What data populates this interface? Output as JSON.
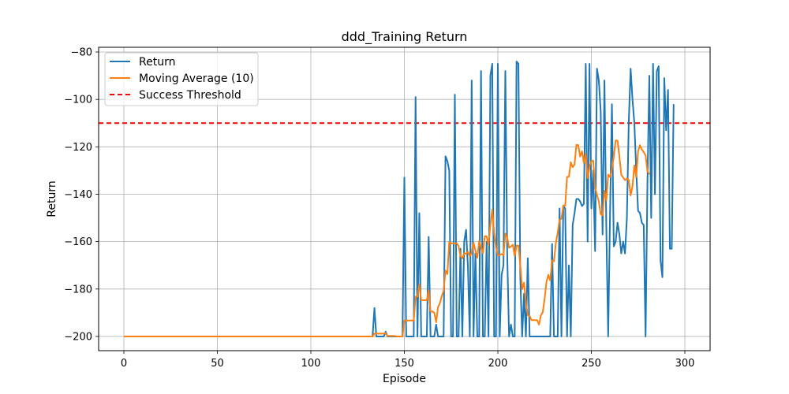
{
  "chart_data": {
    "type": "line",
    "title": "ddd_Training Return",
    "xlabel": "Episode",
    "ylabel": "Return",
    "xlim": [
      -13.5,
      313.5
    ],
    "ylim": [
      -206,
      -78
    ],
    "xticks": [
      0,
      50,
      100,
      150,
      200,
      250,
      300
    ],
    "yticks": [
      -200,
      -180,
      -160,
      -140,
      -120,
      -100,
      -80
    ],
    "grid": true,
    "legend_position": "top-left",
    "threshold": {
      "name": "Success Threshold",
      "value": -110,
      "color": "#ff0000",
      "style": "dashed"
    },
    "series": [
      {
        "name": "Return",
        "color": "#1f77b4",
        "x_start": 0,
        "values": [
          -200,
          -200,
          -200,
          -200,
          -200,
          -200,
          -200,
          -200,
          -200,
          -200,
          -200,
          -200,
          -200,
          -200,
          -200,
          -200,
          -200,
          -200,
          -200,
          -200,
          -200,
          -200,
          -200,
          -200,
          -200,
          -200,
          -200,
          -200,
          -200,
          -200,
          -200,
          -200,
          -200,
          -200,
          -200,
          -200,
          -200,
          -200,
          -200,
          -200,
          -200,
          -200,
          -200,
          -200,
          -200,
          -200,
          -200,
          -200,
          -200,
          -200,
          -200,
          -200,
          -200,
          -200,
          -200,
          -200,
          -200,
          -200,
          -200,
          -200,
          -200,
          -200,
          -200,
          -200,
          -200,
          -200,
          -200,
          -200,
          -200,
          -200,
          -200,
          -200,
          -200,
          -200,
          -200,
          -200,
          -200,
          -200,
          -200,
          -200,
          -200,
          -200,
          -200,
          -200,
          -200,
          -200,
          -200,
          -200,
          -200,
          -200,
          -200,
          -200,
          -200,
          -200,
          -200,
          -200,
          -200,
          -200,
          -200,
          -200,
          -200,
          -200,
          -200,
          -200,
          -200,
          -200,
          -200,
          -200,
          -200,
          -200,
          -200,
          -200,
          -200,
          -200,
          -200,
          -200,
          -200,
          -200,
          -200,
          -200,
          -200,
          -200,
          -200,
          -200,
          -200,
          -200,
          -200,
          -200,
          -200,
          -200,
          -200,
          -200,
          -200,
          -200,
          -188,
          -200,
          -200,
          -200,
          -200,
          -200,
          -198,
          -200,
          -200,
          -200,
          -200,
          -200,
          -200,
          -200,
          -200,
          -200,
          -133,
          -200,
          -200,
          -200,
          -200,
          -200,
          -99,
          -200,
          -148,
          -200,
          -200,
          -200,
          -200,
          -158,
          -200,
          -200,
          -200,
          -195,
          -200,
          -200,
          -200,
          -200,
          -124,
          -126,
          -130,
          -200,
          -200,
          -98,
          -200,
          -200,
          -163,
          -200,
          -160,
          -155,
          -171,
          -200,
          -92,
          -200,
          -165,
          -200,
          -200,
          -88,
          -200,
          -200,
          -160,
          -200,
          -90,
          -85,
          -200,
          -200,
          -85,
          -200,
          -174,
          -170,
          -88,
          -165,
          -200,
          -195,
          -200,
          -200,
          -84,
          -85,
          -175,
          -200,
          -182,
          -200,
          -167,
          -200,
          -200,
          -200,
          -200,
          -200,
          -200,
          -200,
          -200,
          -200,
          -200,
          -200,
          -200,
          -161,
          -200,
          -200,
          -200,
          -146,
          -200,
          -145,
          -146,
          -200,
          -170,
          -200,
          -153,
          -148,
          -142,
          -142,
          -143,
          -145,
          -144,
          -85,
          -160,
          -85,
          -146,
          -130,
          -164,
          -87,
          -92,
          -105,
          -157,
          -92,
          -154,
          -200,
          -148,
          -102,
          -162,
          -160,
          -152,
          -157,
          -165,
          -160,
          -165,
          -150,
          -110,
          -87,
          -100,
          -110,
          -130,
          -147,
          -148,
          -152,
          -153,
          -200,
          -135,
          -90,
          -150,
          -85,
          -140,
          -88,
          -86,
          -168,
          -175,
          -91,
          -113,
          -96,
          -163,
          -163,
          -102
        ]
      },
      {
        "name": "Moving Average (10)",
        "color": "#ff7f0e",
        "x_start": 0,
        "values": [
          -200,
          -200,
          -200,
          -200,
          -200,
          -200,
          -200,
          -200,
          -200,
          -200,
          -200,
          -200,
          -200,
          -200,
          -200,
          -200,
          -200,
          -200,
          -200,
          -200,
          -200,
          -200,
          -200,
          -200,
          -200,
          -200,
          -200,
          -200,
          -200,
          -200,
          -200,
          -200,
          -200,
          -200,
          -200,
          -200,
          -200,
          -200,
          -200,
          -200,
          -200,
          -200,
          -200,
          -200,
          -200,
          -200,
          -200,
          -200,
          -200,
          -200,
          -200,
          -200,
          -200,
          -200,
          -200,
          -200,
          -200,
          -200,
          -200,
          -200,
          -200,
          -200,
          -200,
          -200,
          -200,
          -200,
          -200,
          -200,
          -200,
          -200,
          -200,
          -200,
          -200,
          -200,
          -200,
          -200,
          -200,
          -200,
          -200,
          -200,
          -200,
          -200,
          -200,
          -200,
          -200,
          -200,
          -200,
          -200,
          -200,
          -200,
          -200,
          -200,
          -200,
          -200,
          -200,
          -200,
          -200,
          -200,
          -200,
          -200,
          -200,
          -200,
          -200,
          -200,
          -200,
          -200,
          -200,
          -200,
          -200,
          -200,
          -200,
          -200,
          -200,
          -200,
          -200,
          -200,
          -200,
          -200,
          -200,
          -200,
          -200,
          -200,
          -200,
          -200,
          -200,
          -200,
          -200,
          -200,
          -200,
          -200,
          -200,
          -200,
          -200,
          -200,
          -198.8,
          -198.8,
          -198.8,
          -198.8,
          -198.8,
          -198.8,
          -198.6,
          -199.8,
          -199.8,
          -199.8,
          -199.8,
          -199.8,
          -200,
          -200,
          -200,
          -200,
          -193.3,
          -193.3,
          -193.3,
          -193.3,
          -193.3,
          -193.3,
          -183.2,
          -183.2,
          -178,
          -184.7,
          -184.7,
          -184.7,
          -184.7,
          -180.5,
          -189.5,
          -189.5,
          -190,
          -194,
          -187.6,
          -186,
          -183,
          -180.8,
          -172.2,
          -173.7,
          -160.2,
          -160.7,
          -160.7,
          -160.7,
          -160.7,
          -161.9,
          -165.9,
          -167.1,
          -164.9,
          -165.1,
          -164.3,
          -166.1,
          -164.8,
          -160.4,
          -163.8,
          -166.8,
          -159.8,
          -162.5,
          -164.9,
          -157.7,
          -157.8,
          -161.3,
          -153,
          -146.5,
          -156.3,
          -162.4,
          -165.7,
          -165.7,
          -165.2,
          -165.8,
          -156.6,
          -158.4,
          -162.6,
          -162.1,
          -161.3,
          -166.1,
          -161.7,
          -161.7,
          -170,
          -180,
          -177.3,
          -185.4,
          -191,
          -191.4,
          -193.1,
          -193.1,
          -193.1,
          -193.1,
          -195,
          -191.1,
          -189.8,
          -184.2,
          -177,
          -174,
          -176.4,
          -167.9,
          -168.3,
          -160.7,
          -156.2,
          -150.8,
          -150.4,
          -144.8,
          -144.8,
          -132.7,
          -132.6,
          -126.5,
          -128.6,
          -127.5,
          -119.2,
          -119.3,
          -124.1,
          -121.9,
          -126.8,
          -123,
          -133.2,
          -128.2,
          -126.1,
          -125.8,
          -137,
          -140.3,
          -143,
          -148.4,
          -149,
          -138.5,
          -142.6,
          -131.7,
          -132.7,
          -129.4,
          -124.1,
          -117.3,
          -117.4,
          -124.1,
          -131.8,
          -132.9,
          -134.1,
          -133.4,
          -134,
          -140.5,
          -136.6,
          -127.8,
          -132.7,
          -121.8,
          -119.3,
          -121.1,
          -122.2,
          -123.6,
          -130.2,
          -131.6
        ]
      }
    ]
  }
}
